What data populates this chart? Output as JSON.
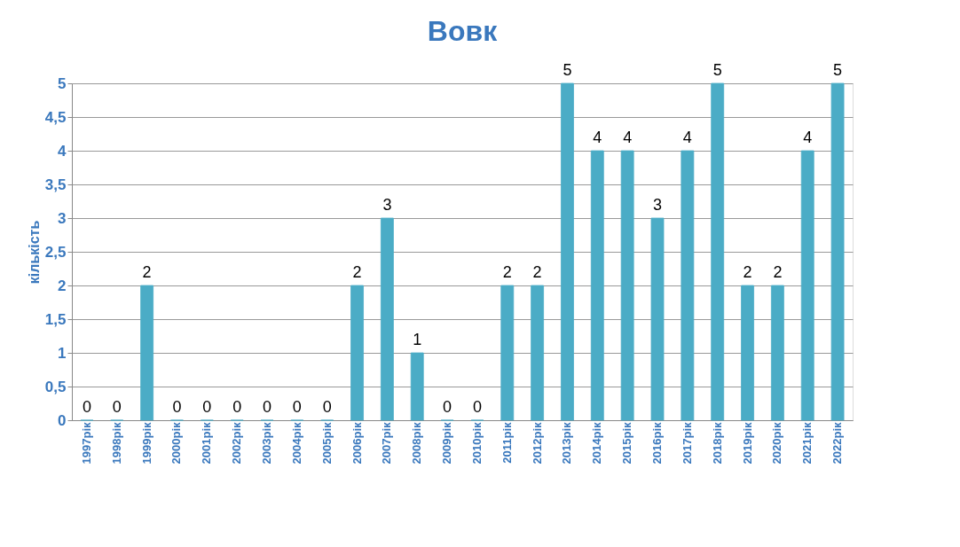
{
  "chart_data": {
    "type": "bar",
    "title": "Вовк",
    "ylabel": "кількість",
    "categories": [
      "1997рік",
      "1998рік",
      "1999рік",
      "2000рік",
      "2001рік",
      "2002рік",
      "2003рік",
      "2004рік",
      "2005рік",
      "2006рік",
      "2007рік",
      "2008рік",
      "2009рік",
      "2010рік",
      "2011рік",
      "2012рік",
      "2013рік",
      "2014рік",
      "2015рік",
      "2016рік",
      "2017рік",
      "2018рік",
      "2019рік",
      "2020рік",
      "2021рік",
      "2022рік"
    ],
    "values": [
      0,
      0,
      2,
      0,
      0,
      0,
      0,
      0,
      0,
      2,
      3,
      1,
      0,
      0,
      2,
      2,
      5,
      4,
      4,
      3,
      4,
      5,
      2,
      2,
      4,
      5
    ],
    "color": "#4bacc6",
    "ylim": [
      0,
      5
    ],
    "yticks": [
      0,
      {
        "value": 0.5,
        "label": "0,5"
      },
      1,
      {
        "value": 1.5,
        "label": "1,5"
      },
      2,
      {
        "value": 2.5,
        "label": "2,5"
      },
      3,
      {
        "value": 3.5,
        "label": "3,5"
      },
      4,
      {
        "value": 4.5,
        "label": "4,5"
      },
      5
    ],
    "grid": "y",
    "data_labels": true
  }
}
